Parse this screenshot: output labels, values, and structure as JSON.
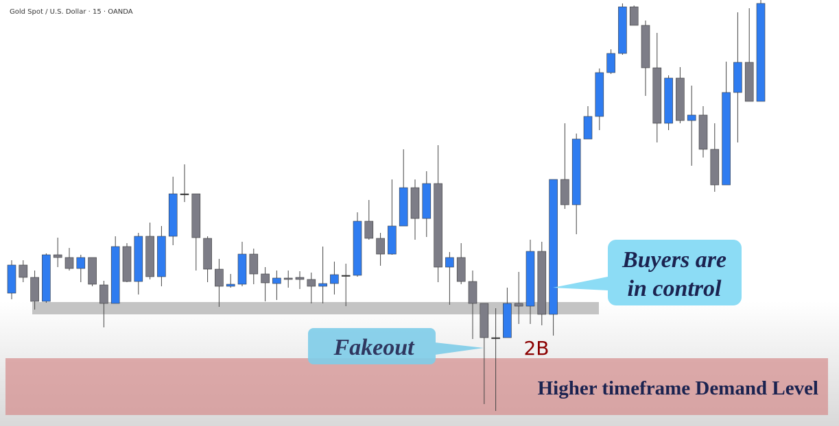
{
  "chart_data": {
    "type": "candlestick",
    "title": "Gold Spot / U.S. Dollar · 15 · OANDA",
    "up_color": "#2f7cf0",
    "down_color": "#7d7d87",
    "flat_color": "#333333",
    "ylim": [
      0,
      622
    ],
    "open": [
      194,
      235,
      217,
      182,
      250,
      246,
      230,
      246,
      206,
      179,
      262,
      211,
      277,
      218,
      277,
      339,
      339,
      274,
      229,
      204,
      207,
      251,
      222,
      208,
      216,
      217,
      214,
      204,
      208,
      220,
      220,
      299,
      274,
      251,
      292,
      348,
      303,
      354,
      232,
      246,
      211,
      179,
      129,
      129,
      179,
      175,
      255,
      163,
      360,
      323,
      419,
      452,
      516,
      544,
      612,
      585,
      523,
      442,
      508,
      446,
      454,
      404,
      352,
      487,
      531,
      474
    ],
    "high": [
      242,
      242,
      227,
      252,
      275,
      260,
      250,
      246,
      212,
      277,
      267,
      282,
      297,
      292,
      364,
      382,
      339,
      277,
      244,
      222,
      269,
      259,
      232,
      227,
      227,
      226,
      224,
      262,
      240,
      237,
      312,
      330,
      282,
      360,
      404,
      360,
      372,
      410,
      254,
      267,
      227,
      179,
      172,
      202,
      225,
      272,
      269,
      360,
      442,
      427,
      467,
      522,
      550,
      617,
      614,
      592,
      574,
      512,
      524,
      497,
      467,
      442,
      532,
      604,
      610,
      622
    ],
    "low": [
      185,
      210,
      170,
      180,
      232,
      227,
      210,
      204,
      144,
      179,
      210,
      192,
      214,
      204,
      264,
      327,
      227,
      210,
      174,
      202,
      204,
      207,
      182,
      184,
      202,
      200,
      179,
      179,
      192,
      175,
      218,
      272,
      234,
      250,
      292,
      272,
      276,
      210,
      177,
      207,
      127,
      32,
      22,
      129,
      149,
      149,
      147,
      132,
      317,
      280,
      419,
      432,
      514,
      542,
      585,
      482,
      414,
      432,
      442,
      380,
      392,
      342,
      352,
      414,
      474,
      474
    ],
    "close": [
      235,
      217,
      182,
      250,
      246,
      230,
      246,
      207,
      179,
      262,
      211,
      277,
      218,
      277,
      339,
      339,
      275,
      229,
      204,
      207,
      251,
      222,
      209,
      216,
      214,
      214,
      204,
      208,
      221,
      220,
      299,
      274,
      251,
      292,
      348,
      303,
      354,
      232,
      246,
      211,
      179,
      129,
      129,
      179,
      175,
      255,
      163,
      360,
      323,
      419,
      452,
      516,
      544,
      612,
      585,
      523,
      442,
      508,
      446,
      454,
      404,
      352,
      487,
      531,
      474,
      617
    ],
    "callout_buyers": [
      "Buyers are",
      "in control"
    ],
    "callout_fakeout": "Fakeout",
    "pattern_label": "2B",
    "zone_label": "Higher timeframe Demand Level"
  }
}
